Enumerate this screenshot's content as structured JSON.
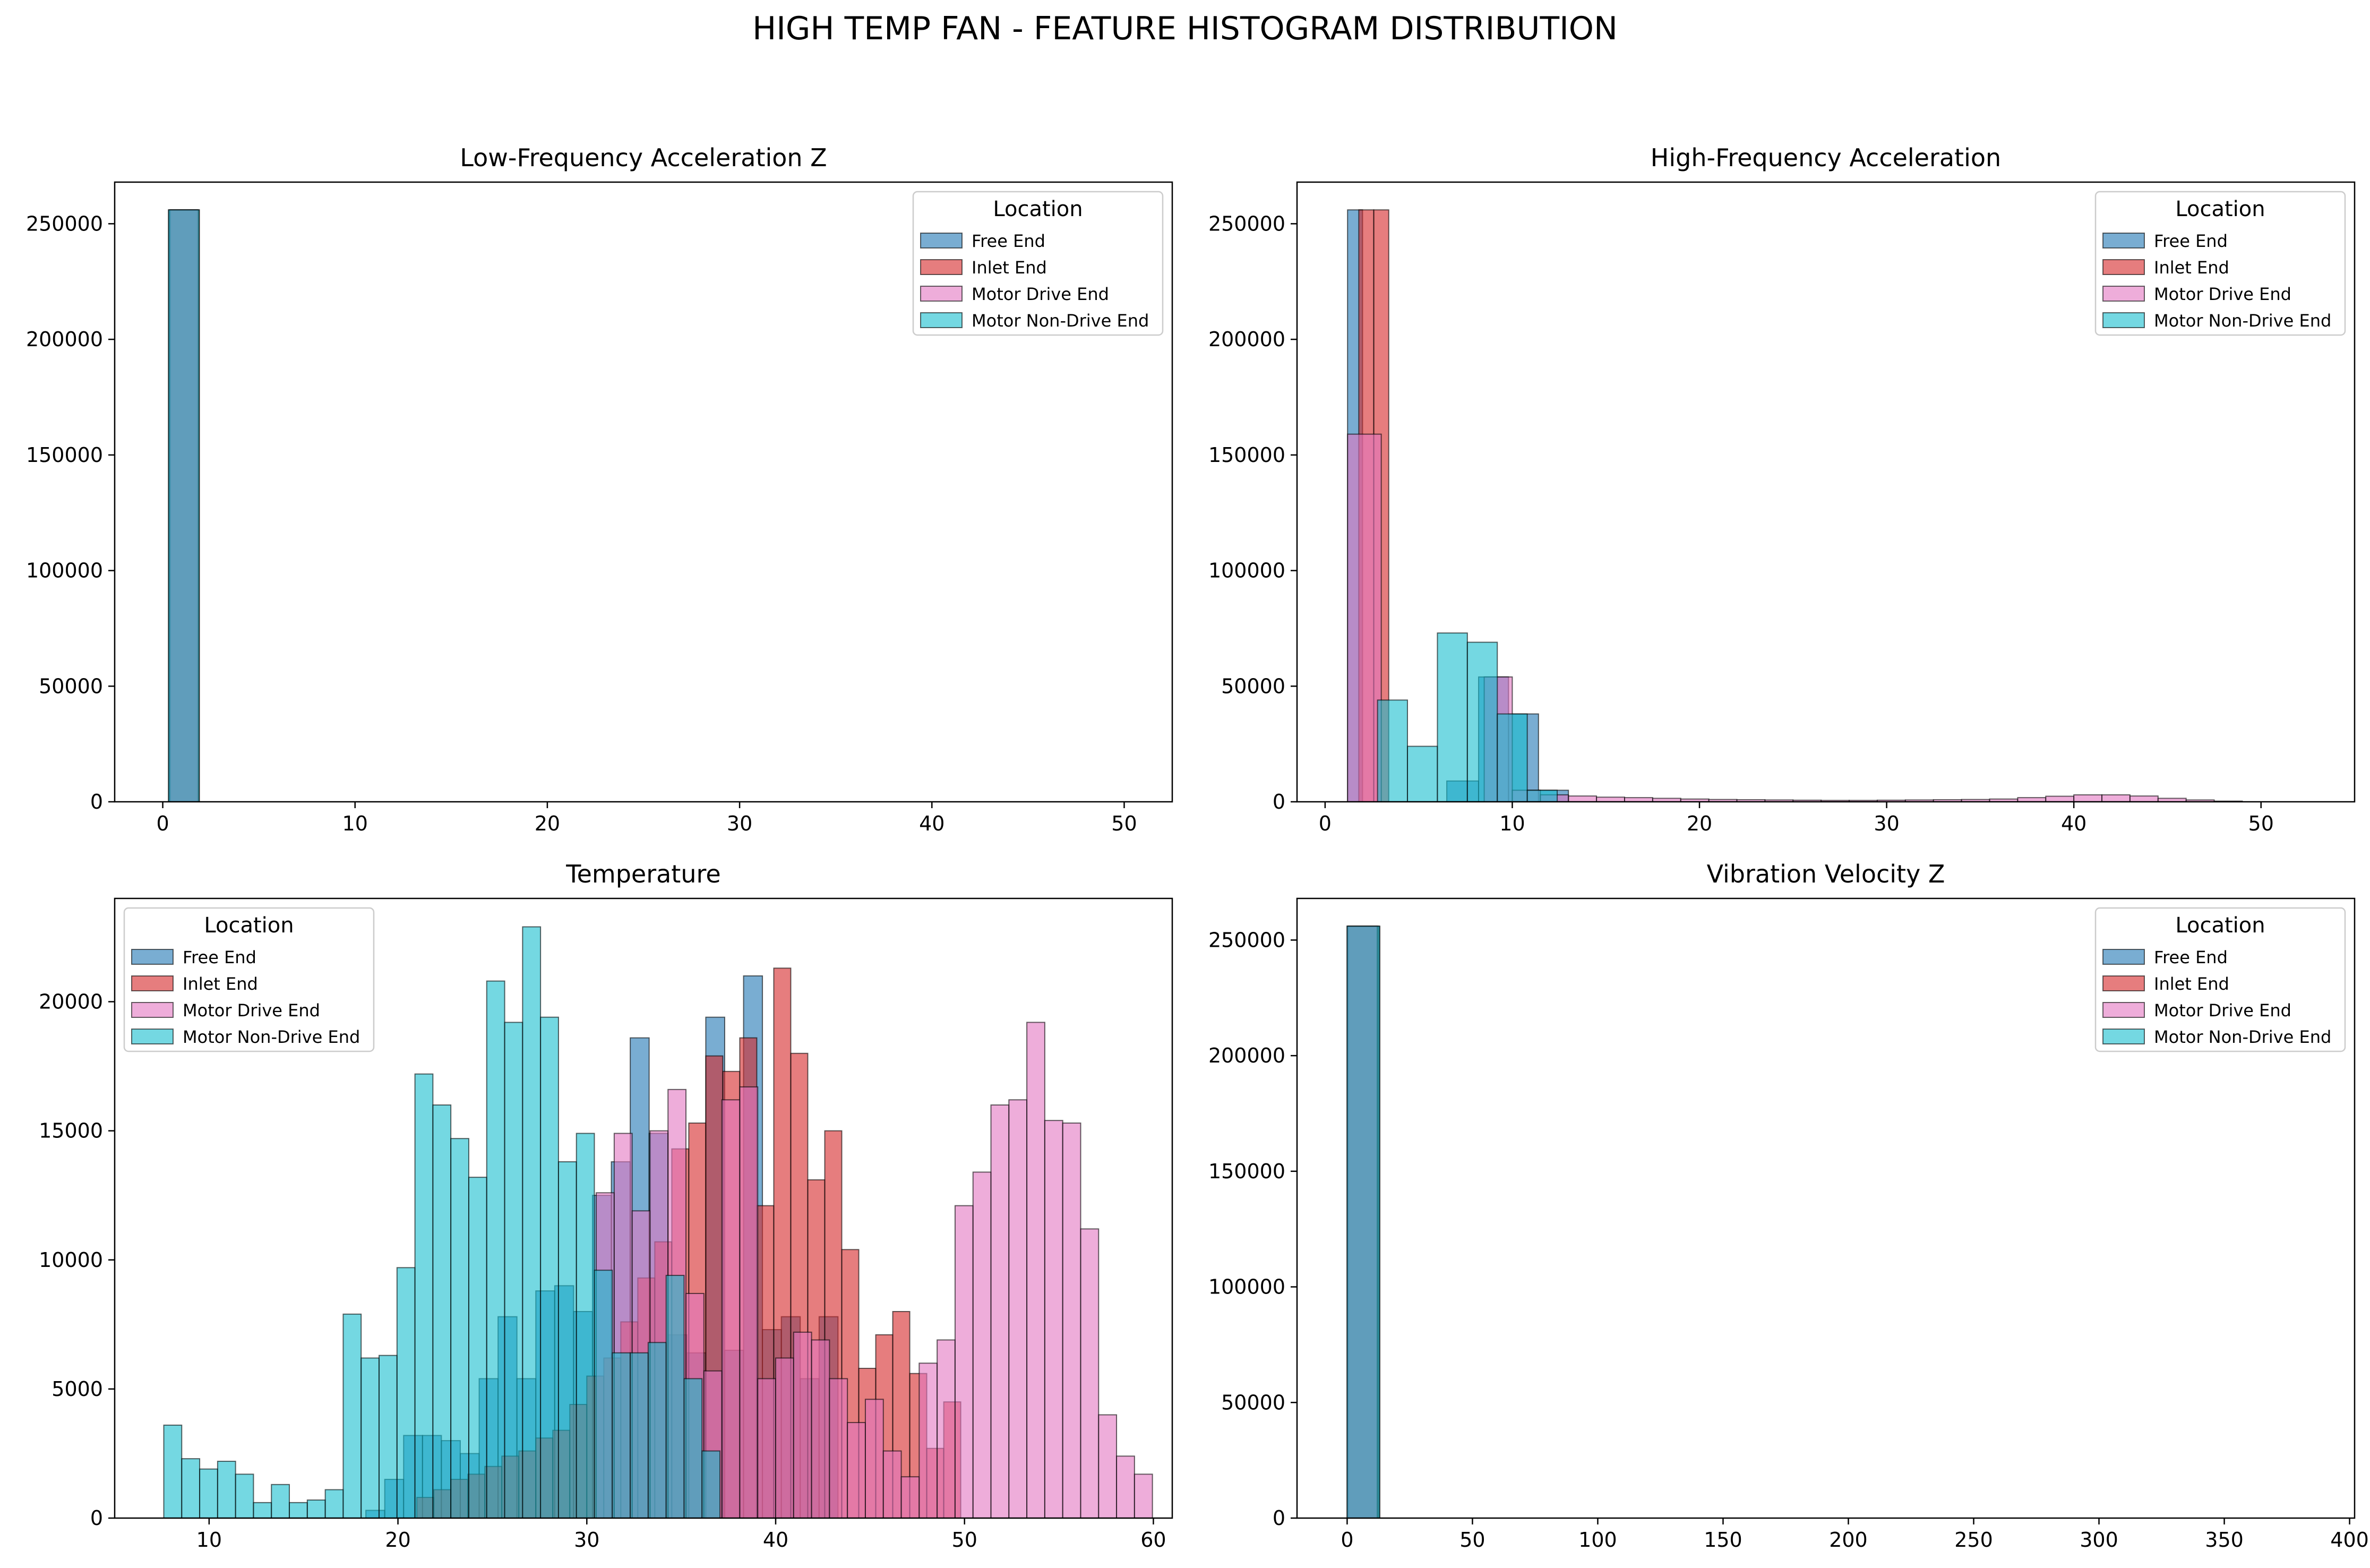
{
  "figure_title": "HIGH TEMP FAN - FEATURE HISTOGRAM DISTRIBUTION",
  "legend": {
    "title": "Location",
    "items": [
      {
        "name": "Free End",
        "color": "#1f77b4"
      },
      {
        "name": "Inlet End",
        "color": "#d62728"
      },
      {
        "name": "Motor Drive End",
        "color": "#e377c2"
      },
      {
        "name": "Motor Non-Drive End",
        "color": "#17becf"
      }
    ]
  },
  "chart_data": [
    {
      "type": "histogram",
      "title": "Low-Frequency Acceleration Z",
      "xlim": [
        -2.5,
        52.5
      ],
      "ylim": [
        0,
        268000
      ],
      "xticks": [
        0,
        10,
        20,
        30,
        40,
        50
      ],
      "yticks": [
        0,
        50000,
        100000,
        150000,
        200000,
        250000
      ],
      "legend_position": "upper right",
      "series": [
        {
          "name": "Free End",
          "bins": [
            [
              0.3,
              1.8,
              256000
            ]
          ]
        },
        {
          "name": "Inlet End",
          "bins": [
            [
              0.4,
              1.9,
              256000
            ]
          ]
        },
        {
          "name": "Motor Drive End",
          "bins": [
            [
              0.35,
              1.85,
              256000
            ]
          ]
        },
        {
          "name": "Motor Non-Drive End",
          "bins": [
            [
              0.3,
              1.9,
              256000
            ]
          ]
        }
      ]
    },
    {
      "type": "histogram",
      "title": "High-Frequency Acceleration",
      "xlim": [
        -1.5,
        55
      ],
      "ylim": [
        0,
        268000
      ],
      "xticks": [
        0,
        10,
        20,
        30,
        40,
        50
      ],
      "yticks": [
        0,
        50000,
        100000,
        150000,
        200000,
        250000
      ],
      "legend_position": "upper right",
      "series": [
        {
          "name": "Free End",
          "bins": [
            [
              1.2,
              2.0,
              256000
            ],
            [
              2.0,
              2.8,
              0
            ],
            [
              6.5,
              8.2,
              9000
            ],
            [
              8.2,
              9.8,
              54000
            ],
            [
              9.8,
              11.4,
              38000
            ],
            [
              11.4,
              13.0,
              5000
            ]
          ]
        },
        {
          "name": "Inlet End",
          "bins": [
            [
              1.8,
              2.6,
              256000
            ],
            [
              2.6,
              3.4,
              256000
            ]
          ]
        },
        {
          "name": "Motor Drive End",
          "bins": [
            [
              1.2,
              3.0,
              159000
            ],
            [
              8.5,
              10.0,
              54000
            ],
            [
              10.0,
              11.5,
              5000
            ],
            [
              11.5,
              13.0,
              3000
            ],
            [
              13.0,
              14.5,
              2500
            ],
            [
              14.5,
              16.0,
              2000
            ],
            [
              16.0,
              17.5,
              1800
            ],
            [
              17.5,
              19.0,
              1500
            ],
            [
              19.0,
              20.5,
              1200
            ],
            [
              20.5,
              22.0,
              1000
            ],
            [
              22.0,
              23.5,
              900
            ],
            [
              23.5,
              25.0,
              800
            ],
            [
              25.0,
              26.5,
              700
            ],
            [
              26.5,
              28.0,
              600
            ],
            [
              28.0,
              29.5,
              600
            ],
            [
              29.5,
              31.0,
              700
            ],
            [
              31.0,
              32.5,
              800
            ],
            [
              32.5,
              34.0,
              900
            ],
            [
              34.0,
              35.5,
              1000
            ],
            [
              35.5,
              37.0,
              1200
            ],
            [
              37.0,
              38.5,
              1800
            ],
            [
              38.5,
              40.0,
              2400
            ],
            [
              40.0,
              41.5,
              3000
            ],
            [
              41.5,
              43.0,
              3000
            ],
            [
              43.0,
              44.5,
              2500
            ],
            [
              44.5,
              46.0,
              1500
            ],
            [
              46.0,
              47.5,
              800
            ],
            [
              47.5,
              49.0,
              300
            ]
          ]
        },
        {
          "name": "Motor Non-Drive End",
          "bins": [
            [
              2.8,
              4.4,
              44000
            ],
            [
              4.4,
              6.0,
              24000
            ],
            [
              6.0,
              7.6,
              73000
            ],
            [
              7.6,
              9.2,
              69000
            ],
            [
              9.2,
              10.8,
              38000
            ],
            [
              10.8,
              12.4,
              5000
            ]
          ]
        }
      ]
    },
    {
      "type": "histogram",
      "title": "Temperature",
      "xlim": [
        5,
        61
      ],
      "ylim": [
        0,
        24000
      ],
      "xticks": [
        10,
        20,
        30,
        40,
        50,
        60
      ],
      "yticks": [
        0,
        5000,
        10000,
        15000,
        20000
      ],
      "legend_position": "upper left",
      "series": [
        {
          "name": "Free End",
          "start": 18.3,
          "width": 1.0,
          "counts": [
            300,
            1500,
            3200,
            3200,
            3000,
            2500,
            5400,
            7800,
            5400,
            8800,
            9000,
            8000,
            12500,
            13800,
            18600,
            14900,
            7100,
            6400,
            19400,
            6500,
            21000,
            7300,
            7800,
            5400,
            7800
          ]
        },
        {
          "name": "Inlet End",
          "start": 21.0,
          "width": 0.9,
          "counts": [
            800,
            1100,
            1500,
            1700,
            2000,
            2400,
            2600,
            3100,
            3400,
            4400,
            5500,
            6200,
            7600,
            9300,
            10700,
            14300,
            15300,
            17900,
            17300,
            18600,
            12100,
            21300,
            18000,
            13100,
            15000,
            10400,
            5800,
            7100,
            8000,
            5600,
            2700,
            4500
          ]
        },
        {
          "name": "Motor Drive End",
          "start": 30.5,
          "width": 0.95,
          "counts": [
            12600,
            14900,
            11900,
            15000,
            16600,
            8700,
            5700,
            16200,
            16700,
            5400,
            6200,
            7200,
            6900,
            5400,
            3700,
            4600,
            2600,
            1600,
            6000,
            6900,
            12100,
            13400,
            16000,
            16200,
            19200,
            15400,
            15300,
            11200,
            4000,
            2400,
            1700
          ]
        },
        {
          "name": "Motor Non-Drive End",
          "start": 7.6,
          "width": 0.95,
          "counts": [
            3600,
            2300,
            1900,
            2200,
            1700,
            600,
            1300,
            600,
            700,
            1100,
            7900,
            6200,
            6300,
            9700,
            17200,
            16000,
            14700,
            13200,
            20800,
            19200,
            22900,
            19400,
            13800,
            14900,
            9600,
            6400,
            6400,
            6800,
            9400,
            5400,
            2600
          ]
        }
      ]
    },
    {
      "type": "histogram",
      "title": "Vibration Velocity Z",
      "xlim": [
        -20,
        402
      ],
      "ylim": [
        0,
        268000
      ],
      "xticks": [
        0,
        50,
        100,
        150,
        200,
        250,
        300,
        350,
        400
      ],
      "yticks": [
        0,
        50000,
        100000,
        150000,
        200000,
        250000
      ],
      "legend_position": "upper right",
      "series": [
        {
          "name": "Free End",
          "bins": [
            [
              0,
              13,
              256000
            ]
          ]
        },
        {
          "name": "Inlet End",
          "bins": [
            [
              0.5,
              12.5,
              256000
            ]
          ]
        },
        {
          "name": "Motor Drive End",
          "bins": [
            [
              0,
              12,
              256000
            ]
          ]
        },
        {
          "name": "Motor Non-Drive End",
          "bins": [
            [
              0,
              13,
              256000
            ]
          ]
        }
      ]
    }
  ]
}
